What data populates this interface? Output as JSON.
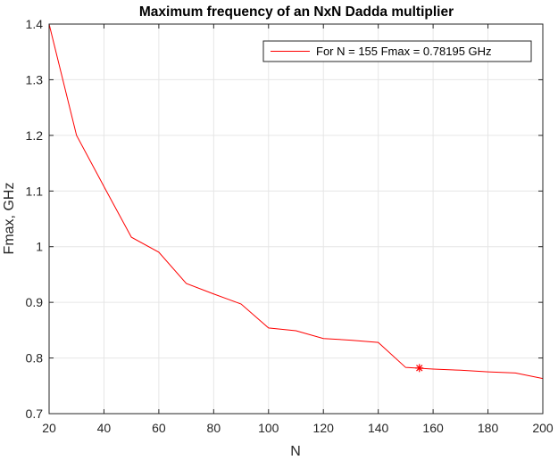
{
  "chart_data": {
    "type": "line",
    "title": "Maximum frequency of an NxN Dadda multiplier",
    "xlabel": "N",
    "ylabel": "Fmax, GHz",
    "xlim": [
      20,
      200
    ],
    "ylim": [
      0.7,
      1.4
    ],
    "xticks": [
      20,
      40,
      60,
      80,
      100,
      120,
      140,
      160,
      180,
      200
    ],
    "yticks": [
      0.7,
      0.8,
      0.9,
      1,
      1.1,
      1.2,
      1.3,
      1.4
    ],
    "xtick_labels": [
      "20",
      "40",
      "60",
      "80",
      "100",
      "120",
      "140",
      "160",
      "180",
      "200"
    ],
    "ytick_labels": [
      "0.7",
      "0.8",
      "0.9",
      "1",
      "1.1",
      "1.2",
      "1.3",
      "1.4"
    ],
    "grid": true,
    "legend_position": "top-right",
    "series": [
      {
        "name": "For N = 155 Fmax = 0.78195 GHz",
        "color": "#ff0000",
        "x": [
          20,
          30,
          40,
          50,
          60,
          70,
          80,
          90,
          100,
          110,
          120,
          130,
          140,
          150,
          160,
          170,
          180,
          190,
          200
        ],
        "y": [
          1.4,
          1.2,
          1.108,
          1.017,
          0.99,
          0.934,
          0.915,
          0.897,
          0.854,
          0.849,
          0.835,
          0.832,
          0.828,
          0.783,
          0.78,
          0.778,
          0.775,
          0.773,
          0.763
        ]
      }
    ],
    "marker": {
      "x": 155,
      "y": 0.78195,
      "symbol": "*",
      "color": "#ff0000"
    }
  }
}
